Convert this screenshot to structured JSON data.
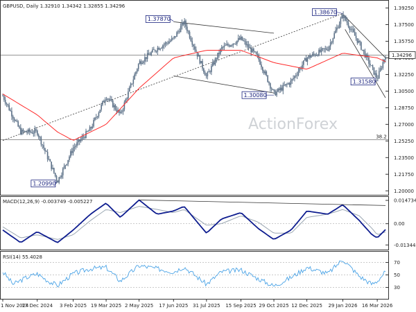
{
  "chart_data": [
    {
      "type": "candlestick",
      "title": "GBPUSD, Daily 1.32910 1.34342 1.32855 1.34296",
      "symbol": "GBPUSD",
      "timeframe": "Daily",
      "ohlc": {
        "open": 1.3291,
        "high": 1.34342,
        "low": 1.32855,
        "close": 1.34296
      },
      "last_price_label": "1.34296",
      "x_tick_labels": [
        "1 Nov 2024",
        "17 Dec 2024",
        "3 Feb 2025",
        "19 Mar 2025",
        "2 May 2025",
        "17 Jun 2025",
        "31 Jul 2025",
        "15 Sep 2025",
        "29 Oct 2025",
        "12 Dec 2025",
        "29 Jan 2026",
        "16 Mar 2026"
      ],
      "y_tick_labels": [
        "1.39250",
        "1.37500",
        "1.35750",
        "1.34000",
        "1.32250",
        "1.30500",
        "1.28750",
        "1.27000",
        "1.25250",
        "1.23500",
        "1.21750",
        "1.20000"
      ],
      "ylim": [
        1.198,
        1.398
      ],
      "price_series": [
        {
          "date": "1 Nov 2024",
          "value": 1.3
        },
        {
          "date": "25 Nov 2024",
          "value": 1.262
        },
        {
          "date": "17 Dec 2024",
          "value": 1.262
        },
        {
          "date": "13 Jan 2025",
          "value": 1.21
        },
        {
          "date": "3 Feb 2025",
          "value": 1.245
        },
        {
          "date": "26 Feb 2025",
          "value": 1.265
        },
        {
          "date": "19 Mar 2025",
          "value": 1.3
        },
        {
          "date": "7 Apr 2025",
          "value": 1.28
        },
        {
          "date": "2 May 2025",
          "value": 1.335
        },
        {
          "date": "26 May 2025",
          "value": 1.35
        },
        {
          "date": "17 Jun 2025",
          "value": 1.36
        },
        {
          "date": "1 Jul 2025",
          "value": 1.378
        },
        {
          "date": "31 Jul 2025",
          "value": 1.32
        },
        {
          "date": "20 Aug 2025",
          "value": 1.35
        },
        {
          "date": "15 Sep 2025",
          "value": 1.36
        },
        {
          "date": "8 Oct 2025",
          "value": 1.34
        },
        {
          "date": "29 Oct 2025",
          "value": 1.302
        },
        {
          "date": "21 Nov 2025",
          "value": 1.315
        },
        {
          "date": "12 Dec 2025",
          "value": 1.34
        },
        {
          "date": "9 Jan 2026",
          "value": 1.35
        },
        {
          "date": "29 Jan 2026",
          "value": 1.385
        },
        {
          "date": "20 Feb 2026",
          "value": 1.355
        },
        {
          "date": "16 Mar 2026",
          "value": 1.318
        },
        {
          "date": "27 Mar 2026",
          "value": 1.343
        }
      ],
      "ma_series": [
        {
          "date": "1 Nov 2024",
          "value": 1.302
        },
        {
          "date": "17 Dec 2024",
          "value": 1.28
        },
        {
          "date": "13 Jan 2025",
          "value": 1.262
        },
        {
          "date": "3 Feb 2025",
          "value": 1.253
        },
        {
          "date": "19 Mar 2025",
          "value": 1.27
        },
        {
          "date": "2 May 2025",
          "value": 1.308
        },
        {
          "date": "17 Jun 2025",
          "value": 1.34
        },
        {
          "date": "31 Jul 2025",
          "value": 1.348
        },
        {
          "date": "15 Sep 2025",
          "value": 1.348
        },
        {
          "date": "29 Oct 2025",
          "value": 1.335
        },
        {
          "date": "12 Dec 2025",
          "value": 1.328
        },
        {
          "date": "29 Jan 2026",
          "value": 1.345
        },
        {
          "date": "16 Mar 2026",
          "value": 1.34
        },
        {
          "date": "27 Mar 2026",
          "value": 1.336
        }
      ],
      "horizontal_lines": [
        {
          "value": 1.34296
        },
        {
          "value": 1.254,
          "label": "38.2"
        }
      ],
      "trendlines": [
        {
          "from": {
            "date": "1 Nov 2024",
            "value": 1.253
          },
          "to": {
            "date": "29 Jan 2026",
            "value": 1.3867
          },
          "style": "dashed"
        },
        {
          "from": {
            "date": "17 Jun 2025",
            "value": 1.378
          },
          "to": {
            "date": "29 Oct 2025",
            "value": 1.366
          },
          "style": "solid"
        },
        {
          "from": {
            "date": "17 Jun 2025",
            "value": 1.321
          },
          "to": {
            "date": "29 Oct 2025",
            "value": 1.303
          },
          "style": "solid"
        },
        {
          "from": {
            "date": "29 Jan 2026",
            "value": 1.386
          },
          "to": {
            "date": "27 Mar 2026",
            "value": 1.34
          },
          "style": "solid"
        },
        {
          "from": {
            "date": "1 Feb 2026",
            "value": 1.37
          },
          "to": {
            "date": "27 Mar 2026",
            "value": 1.298
          },
          "style": "solid"
        }
      ],
      "annotations": [
        {
          "text": "1.37870",
          "date": "17 Jun 2025",
          "value": 1.3787
        },
        {
          "text": "1.38670",
          "date": "29 Jan 2026",
          "value": 1.3867
        },
        {
          "text": "1.30080",
          "date": "29 Oct 2025",
          "value": 1.3008
        },
        {
          "text": "1.31580",
          "date": "16 Mar 2026",
          "value": 1.3158
        },
        {
          "text": "1.20990",
          "date": "13 Jan 2025",
          "value": 1.2099
        }
      ],
      "watermark": "ActionForex"
    },
    {
      "type": "line",
      "title": "MACD(12,26,9) -0.003749 -0.005227",
      "y_tick_labels": [
        "0.014734",
        "0.00",
        "-0.013442"
      ],
      "ylim": [
        -0.0155,
        0.0165
      ],
      "zero_line": 0,
      "series": [
        {
          "values": [
            {
              "date": "1 Nov 2024",
              "value": -0.004
            },
            {
              "date": "25 Nov 2024",
              "value": -0.012
            },
            {
              "date": "17 Dec 2024",
              "value": -0.005
            },
            {
              "date": "13 Jan 2025",
              "value": -0.012
            },
            {
              "date": "3 Feb 2025",
              "value": -0.004
            },
            {
              "date": "26 Feb 2025",
              "value": 0.006
            },
            {
              "date": "19 Mar 2025",
              "value": 0.013
            },
            {
              "date": "7 Apr 2025",
              "value": 0.004
            },
            {
              "date": "2 May 2025",
              "value": 0.015
            },
            {
              "date": "26 May 2025",
              "value": 0.006
            },
            {
              "date": "17 Jun 2025",
              "value": 0.008
            },
            {
              "date": "1 Jul 2025",
              "value": 0.011
            },
            {
              "date": "31 Jul 2025",
              "value": -0.006
            },
            {
              "date": "20 Aug 2025",
              "value": 0.003
            },
            {
              "date": "15 Sep 2025",
              "value": 0.007
            },
            {
              "date": "8 Oct 2025",
              "value": -0.003
            },
            {
              "date": "29 Oct 2025",
              "value": -0.01
            },
            {
              "date": "21 Nov 2025",
              "value": -0.004
            },
            {
              "date": "12 Dec 2025",
              "value": 0.008
            },
            {
              "date": "9 Jan 2026",
              "value": 0.006
            },
            {
              "date": "29 Jan 2026",
              "value": 0.012
            },
            {
              "date": "20 Feb 2026",
              "value": 0.002
            },
            {
              "date": "9 Mar 2026",
              "value": -0.007
            },
            {
              "date": "16 Mar 2026",
              "value": -0.009
            },
            {
              "date": "27 Mar 2026",
              "value": -0.0037
            }
          ]
        },
        {
          "values": [
            {
              "date": "1 Nov 2024",
              "value": -0.002
            },
            {
              "date": "25 Nov 2024",
              "value": -0.009
            },
            {
              "date": "17 Dec 2024",
              "value": -0.007
            },
            {
              "date": "13 Jan 2025",
              "value": -0.01
            },
            {
              "date": "3 Feb 2025",
              "value": -0.007
            },
            {
              "date": "26 Feb 2025",
              "value": 0.002
            },
            {
              "date": "19 Mar 2025",
              "value": 0.009
            },
            {
              "date": "7 Apr 2025",
              "value": 0.007
            },
            {
              "date": "2 May 2025",
              "value": 0.011
            },
            {
              "date": "26 May 2025",
              "value": 0.009
            },
            {
              "date": "17 Jun 2025",
              "value": 0.007
            },
            {
              "date": "1 Jul 2025",
              "value": 0.009
            },
            {
              "date": "31 Jul 2025",
              "value": -0.001
            },
            {
              "date": "20 Aug 2025",
              "value": 0.0
            },
            {
              "date": "15 Sep 2025",
              "value": 0.005
            },
            {
              "date": "8 Oct 2025",
              "value": 0.001
            },
            {
              "date": "29 Oct 2025",
              "value": -0.006
            },
            {
              "date": "21 Nov 2025",
              "value": -0.006
            },
            {
              "date": "12 Dec 2025",
              "value": 0.004
            },
            {
              "date": "9 Jan 2026",
              "value": 0.006
            },
            {
              "date": "29 Jan 2026",
              "value": 0.009
            },
            {
              "date": "20 Feb 2026",
              "value": 0.005
            },
            {
              "date": "9 Mar 2026",
              "value": -0.003
            },
            {
              "date": "16 Mar 2026",
              "value": -0.007
            },
            {
              "date": "27 Mar 2026",
              "value": -0.0052
            }
          ]
        }
      ],
      "trendlines": [
        {
          "from": {
            "date": "2 May 2025",
            "value": 0.015
          },
          "to": {
            "date": "27 Mar 2026",
            "value": 0.0115
          },
          "style": "solid"
        }
      ]
    },
    {
      "type": "line",
      "title": "RSI(14) 55.4028",
      "y_tick_labels": [
        "70",
        "50",
        "30"
      ],
      "ylim": [
        15,
        85
      ],
      "reference_lines": [
        70,
        50,
        30
      ],
      "series": [
        {
          "values": [
            {
              "date": "1 Nov 2024",
              "value": 55
            },
            {
              "date": "15 Nov 2024",
              "value": 35
            },
            {
              "date": "1 Dec 2024",
              "value": 45
            },
            {
              "date": "17 Dec 2024",
              "value": 52
            },
            {
              "date": "1 Jan 2025",
              "value": 40
            },
            {
              "date": "13 Jan 2025",
              "value": 33
            },
            {
              "date": "3 Feb 2025",
              "value": 52
            },
            {
              "date": "26 Feb 2025",
              "value": 60
            },
            {
              "date": "19 Mar 2025",
              "value": 62
            },
            {
              "date": "7 Apr 2025",
              "value": 40
            },
            {
              "date": "2 May 2025",
              "value": 65
            },
            {
              "date": "26 May 2025",
              "value": 60
            },
            {
              "date": "17 Jun 2025",
              "value": 55
            },
            {
              "date": "1 Jul 2025",
              "value": 63
            },
            {
              "date": "31 Jul 2025",
              "value": 35
            },
            {
              "date": "20 Aug 2025",
              "value": 55
            },
            {
              "date": "15 Sep 2025",
              "value": 58
            },
            {
              "date": "8 Oct 2025",
              "value": 44
            },
            {
              "date": "29 Oct 2025",
              "value": 32
            },
            {
              "date": "21 Nov 2025",
              "value": 46
            },
            {
              "date": "12 Dec 2025",
              "value": 62
            },
            {
              "date": "9 Jan 2026",
              "value": 52
            },
            {
              "date": "29 Jan 2026",
              "value": 75
            },
            {
              "date": "20 Feb 2026",
              "value": 48
            },
            {
              "date": "9 Mar 2026",
              "value": 35
            },
            {
              "date": "16 Mar 2026",
              "value": 40
            },
            {
              "date": "27 Mar 2026",
              "value": 55.4
            }
          ]
        }
      ]
    }
  ],
  "colors": {
    "candle": "#5b7087",
    "ma": "#ff2a2a",
    "macd_main": "#0d1c8f",
    "macd_signal": "#9aa6b2",
    "rsi": "#4aa3e6",
    "trendline": "#555555",
    "callout_border": "#1a237e",
    "panel_border": "#333333",
    "grid": "#b8b8b8"
  }
}
